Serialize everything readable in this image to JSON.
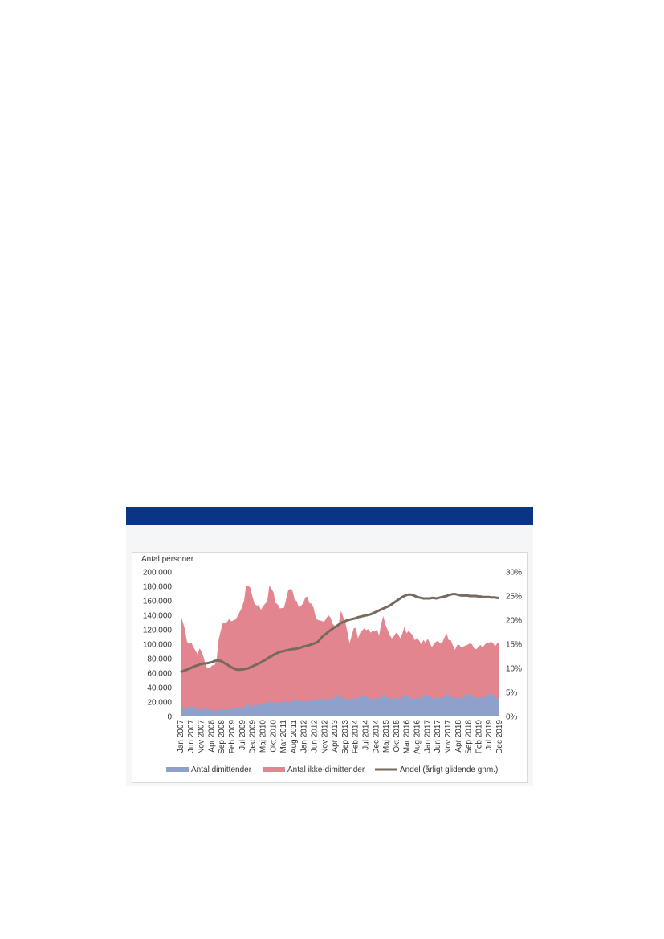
{
  "chart_data": {
    "type": "area",
    "title": "",
    "ylabel": "Antal personer",
    "y2label": "",
    "ylim": [
      0,
      200000
    ],
    "y2lim": [
      0,
      30
    ],
    "y_ticks": [
      "0",
      "20.000",
      "40.000",
      "60.000",
      "80.000",
      "100.000",
      "120.000",
      "140.000",
      "160.000",
      "180.000",
      "200.000"
    ],
    "y2_ticks": [
      "0%",
      "5%",
      "10%",
      "15%",
      "20%",
      "25%",
      "30%"
    ],
    "x_tick_labels": [
      "Jan 2007",
      "Jun 2007",
      "Nov 2007",
      "Apr 2008",
      "Sep 2008",
      "Feb 2009",
      "Jul 2009",
      "Dec 2009",
      "Maj 2010",
      "Okt 2010",
      "Mar 2011",
      "Aug 2011",
      "Jan 2012",
      "Jun 2012",
      "Nov 2012",
      "Apr 2013",
      "Sep 2013",
      "Feb 2014",
      "Jul 2014",
      "Dec 2014",
      "Maj 2015",
      "Okt 2015",
      "Mar 2016",
      "Aug 2016",
      "Jan 2017",
      "Jun 2017",
      "Nov 2017",
      "Apr 2018",
      "Sep 2018",
      "Feb 2019",
      "Jul 2019",
      "Dec 2019"
    ],
    "grid": false,
    "legend_position": "bottom",
    "colors": {
      "dimittender": "#8da1cc",
      "ikke_dimittender": "#e3858f",
      "andel": "#76695d",
      "banner": "#0a3484"
    },
    "series": [
      {
        "name": "Antal dimittender",
        "type": "area",
        "axis": "left",
        "values": [
          12000,
          11000,
          10500,
          11500,
          12000,
          14500,
          12500,
          11000,
          10000,
          9500,
          9000,
          10500,
          11000,
          10000,
          9500,
          9000,
          8500,
          8000,
          8500,
          10500,
          10000,
          9500,
          9000,
          10000,
          10500,
          10000,
          11500,
          12000,
          13000,
          12500,
          12000,
          15000,
          17000,
          15000,
          14000,
          16000,
          15500,
          16000,
          17500,
          16500,
          16000,
          19000,
          21000,
          20000,
          19500,
          20000,
          19000,
          19500,
          20000,
          20500,
          21000,
          20000,
          19500,
          22500,
          23000,
          21500,
          20500,
          21000,
          21500,
          20500,
          21000,
          22000,
          23000,
          22000,
          21000,
          23500,
          25000,
          24000,
          23000,
          24000,
          25000,
          24000,
          23000,
          27500,
          29000,
          27500,
          26500,
          25500,
          24500,
          24000,
          23000,
          25000,
          26000,
          24500,
          24000,
          27500,
          29000,
          28000,
          26500,
          25000,
          24000,
          24500,
          25500,
          24500,
          24000,
          28000,
          29000,
          27500,
          26000,
          25000,
          24000,
          25000,
          26000,
          25000,
          24000,
          28500,
          29500,
          28000,
          26500,
          25500,
          24000,
          25500,
          26500,
          25000,
          24000,
          29000,
          30000,
          28500,
          27000,
          26000,
          24500,
          25500,
          26500,
          25000,
          24500,
          29500,
          31000,
          29500,
          27500,
          26000,
          24500,
          26000,
          27000,
          25500,
          25000,
          30000,
          31500,
          30000,
          28000,
          26500,
          25000,
          26000,
          27000,
          25500,
          25000,
          30500,
          32000,
          30500,
          28500,
          27000,
          25500,
          23000
        ]
      },
      {
        "name": "Antal ikke-dimittender",
        "type": "area",
        "axis": "left",
        "stacked": true,
        "values": [
          128000,
          120000,
          110000,
          92000,
          88000,
          88000,
          84000,
          80000,
          76000,
          85000,
          80000,
          70000,
          58000,
          57000,
          58000,
          62000,
          62000,
          70000,
          98000,
          108000,
          120000,
          120000,
          122000,
          125000,
          121000,
          123000,
          123000,
          127000,
          132000,
          138000,
          148000,
          166000,
          164000,
          163000,
          152000,
          140000,
          138000,
          138000,
          130000,
          136000,
          140000,
          140000,
          160000,
          157000,
          152000,
          137000,
          136000,
          130000,
          130000,
          130000,
          142000,
          155000,
          157000,
          151000,
          139000,
          138000,
          130000,
          132000,
          135000,
          144000,
          145000,
          135000,
          133000,
          128000,
          116000,
          110000,
          108000,
          108000,
          108000,
          112000,
          115000,
          113000,
          105000,
          98000,
          95000,
          103000,
          120000,
          112000,
          106000,
          93000,
          78000,
          87000,
          96000,
          98000,
          84000,
          88000,
          90000,
          94000,
          93000,
          96000,
          92000,
          94000,
          92000,
          96000,
          88000,
          100000,
          110000,
          100000,
          94000,
          88000,
          84000,
          86000,
          90000,
          89000,
          84000,
          86000,
          95000,
          87000,
          92000,
          90000,
          88000,
          80000,
          82000,
          80000,
          76000,
          77000,
          72000,
          79000,
          75000,
          70000,
          76000,
          78000,
          78000,
          76000,
          78000,
          80000,
          84000,
          76000,
          78000,
          72000,
          68000,
          73000,
          72000,
          70000,
          72000,
          68000,
          68000,
          71000,
          72000,
          68000,
          68000,
          70000,
          72000,
          70000,
          74000,
          72000,
          70000,
          73000,
          73000,
          70000,
          76000,
          80000
        ]
      },
      {
        "name": "Andel (årligt glidende gnm.)",
        "type": "line",
        "axis": "right",
        "values": [
          9.2,
          9.4,
          9.6,
          9.7,
          9.9,
          10.1,
          10.3,
          10.5,
          10.6,
          10.8,
          10.9,
          11.0,
          11.0,
          11.1,
          11.2,
          11.3,
          11.5,
          11.6,
          11.6,
          11.5,
          11.3,
          11.0,
          10.8,
          10.5,
          10.2,
          10.0,
          9.8,
          9.7,
          9.7,
          9.8,
          9.8,
          9.9,
          10.0,
          10.2,
          10.4,
          10.6,
          10.8,
          11.0,
          11.2,
          11.5,
          11.7,
          12.0,
          12.3,
          12.5,
          12.8,
          13.0,
          13.2,
          13.4,
          13.5,
          13.6,
          13.7,
          13.8,
          13.9,
          14.0,
          14.0,
          14.1,
          14.2,
          14.3,
          14.5,
          14.6,
          14.7,
          14.8,
          15.0,
          15.1,
          15.3,
          15.5,
          16.0,
          16.5,
          16.9,
          17.2,
          17.6,
          17.9,
          18.2,
          18.5,
          18.8,
          19.1,
          19.4,
          19.6,
          19.8,
          20.0,
          20.1,
          20.2,
          20.3,
          20.4,
          20.6,
          20.7,
          20.8,
          20.9,
          21.0,
          21.1,
          21.2,
          21.4,
          21.6,
          21.8,
          22.0,
          22.2,
          22.4,
          22.6,
          22.8,
          23.0,
          23.3,
          23.6,
          23.9,
          24.2,
          24.5,
          24.8,
          25.0,
          25.2,
          25.3,
          25.3,
          25.2,
          25.0,
          24.8,
          24.7,
          24.6,
          24.5,
          24.5,
          24.5,
          24.5,
          24.6,
          24.6,
          24.5,
          24.6,
          24.7,
          24.8,
          24.9,
          25.0,
          25.2,
          25.3,
          25.4,
          25.4,
          25.3,
          25.2,
          25.1,
          25.1,
          25.1,
          25.1,
          25.0,
          25.0,
          25.0,
          25.0,
          24.9,
          24.9,
          24.8,
          24.8,
          24.8,
          24.8,
          24.7,
          24.7,
          24.7,
          24.6,
          24.6
        ]
      }
    ]
  }
}
